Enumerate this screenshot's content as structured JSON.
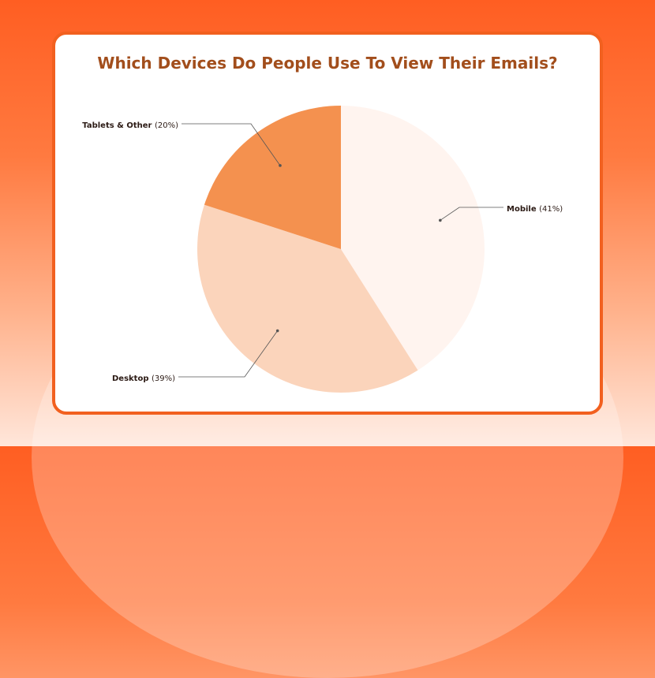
{
  "chart_data": {
    "type": "pie",
    "title": "Which Devices Do People Use To View Their Emails?",
    "slices": [
      {
        "label": "Mobile",
        "pct_text": "(41%)",
        "value": 41,
        "color": "#fff4ef"
      },
      {
        "label": "Desktop",
        "pct_text": "(39%)",
        "value": 39,
        "color": "#fbd4bb"
      },
      {
        "label": "Tablets & Other",
        "pct_text": "(20%)",
        "value": 20,
        "color": "#f4914f"
      }
    ],
    "legend": "none"
  },
  "colors": {
    "background_accent": "#ff5e22",
    "card_border": "#f2601f",
    "title": "#a24e1c",
    "label_text": "#2b1a14",
    "leader_line": "#555555"
  }
}
